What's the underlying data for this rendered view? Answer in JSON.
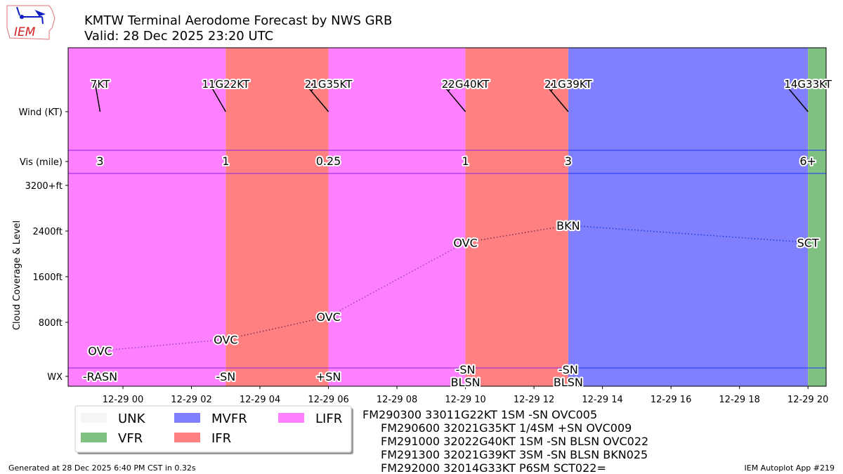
{
  "title": "KMTW Terminal Aerodome Forecast by NWS GRB",
  "subtitle": "Valid: 28 Dec 2025 23:20 UTC",
  "logo_text": "IEM",
  "footer_left": "Generated at 28 Dec 2025 6:40 PM CST in 0.32s",
  "footer_right": "IEM Autoplot App #219",
  "category_colors": {
    "UNK": "#f5f5f5",
    "VFR": "#80c080",
    "MVFR": "#8080ff",
    "IFR": "#ff8080",
    "LIFR": "#ff80ff"
  },
  "legend": [
    {
      "label": "UNK",
      "color": "#f5f5f5"
    },
    {
      "label": "VFR",
      "color": "#80c080"
    },
    {
      "label": "MVFR",
      "color": "#8080ff"
    },
    {
      "label": "IFR",
      "color": "#ff8080"
    },
    {
      "label": "LIFR",
      "color": "#ff80ff"
    }
  ],
  "taf_text": [
    "FM290300 33011G22KT 1SM -SN OVC005",
    "FM290600 32021G35KT 1/4SM +SN OVC009",
    "FM291000 32022G40KT 1SM -SN BLSN OVC022",
    "FM291300 32021G39KT 3SM -SN BLSN BKN025",
    "FM292000 32014G33KT P6SM SCT022="
  ],
  "chart_data": {
    "type": "timeline",
    "ylabel": "Cloud Coverage & Level",
    "row_labels": [
      "Wind (KT)",
      "Vis (mile)",
      "WX"
    ],
    "cloud_ticks": [
      "800ft",
      "1600ft",
      "2400ft",
      "3200+ft"
    ],
    "cloud_tick_values": [
      800,
      1600,
      2400,
      3200
    ],
    "x_ticks": [
      "12-29 00",
      "12-29 02",
      "12-29 04",
      "12-29 06",
      "12-29 08",
      "12-29 10",
      "12-29 12",
      "12-29 14",
      "12-29 16",
      "12-29 18",
      "12-29 20"
    ],
    "x_tick_hours": [
      0,
      2,
      4,
      6,
      8,
      10,
      12,
      14,
      16,
      18,
      20
    ],
    "xlim_hours_from_12-29_00UTC": [
      -1.6,
      20.53
    ],
    "forecasts": [
      {
        "time": "12-28 23:20",
        "hour": -0.667,
        "category": "LIFR",
        "wind_dir": 350,
        "wind": "7KT",
        "speed": 7,
        "vis": "3",
        "sky": "OVC",
        "level_ft": 300,
        "wx": [
          "-RASN"
        ]
      },
      {
        "time": "12-29 03:00",
        "hour": 3,
        "category": "IFR",
        "wind_dir": 330,
        "wind": "11G22KT",
        "speed": 11,
        "vis": "1",
        "sky": "OVC",
        "level_ft": 500,
        "wx": [
          "-SN"
        ]
      },
      {
        "time": "12-29 06:00",
        "hour": 6,
        "category": "LIFR",
        "wind_dir": 320,
        "wind": "21G35KT",
        "speed": 21,
        "vis": "0.25",
        "sky": "OVC",
        "level_ft": 900,
        "wx": [
          "+SN"
        ]
      },
      {
        "time": "12-29 10:00",
        "hour": 10,
        "category": "IFR",
        "wind_dir": 320,
        "wind": "22G40KT",
        "speed": 22,
        "vis": "1",
        "sky": "OVC",
        "level_ft": 2200,
        "wx": [
          "-SN",
          "BLSN"
        ]
      },
      {
        "time": "12-29 13:00",
        "hour": 13,
        "category": "MVFR",
        "wind_dir": 320,
        "wind": "21G39KT",
        "speed": 21,
        "vis": "3",
        "sky": "BKN",
        "level_ft": 2500,
        "wx": [
          "-SN",
          "BLSN"
        ]
      },
      {
        "time": "12-29 20:00",
        "hour": 20,
        "category": "VFR",
        "wind_dir": 320,
        "wind": "14G33KT",
        "speed": 14,
        "vis": "6+",
        "sky": "SCT",
        "level_ft": 2200,
        "wx": []
      }
    ]
  }
}
